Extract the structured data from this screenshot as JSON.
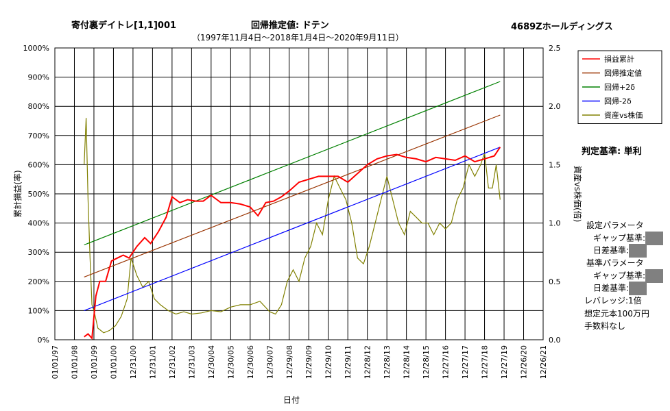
{
  "header": {
    "strategy": "寄付裏デイトレ[1,1]001",
    "regression_title": "回帰推定値: ドテン",
    "period": "（1997年11月4日～2018年1月4日～2020年9月11日）",
    "company": "4689Zホールディングス"
  },
  "side": {
    "judgment": "判定基準: 単利",
    "settings_title": "設定パラメータ",
    "gap_label": "ギャップ基準:",
    "daydiff_label": "日差基準:",
    "base_title": "基準パラメータ",
    "gap_label2": "ギャップ基準:",
    "daydiff_label2": "日差基準:",
    "leverage": "レバレッジ:1倍",
    "capital": "想定元本100万円",
    "fee": "手数料なし"
  },
  "chart_data": {
    "type": "line",
    "xlabel": "日付",
    "ylabel": "累計損益(率)",
    "y2label": "資産vs株価(倍)",
    "x_tick_labels": [
      "01/01/97",
      "01/01/98",
      "01/01/99",
      "01/01/00",
      "12/31/00",
      "12/31/01",
      "12/31/02",
      "12/31/03",
      "12/30/04",
      "12/30/05",
      "12/30/06",
      "12/30/07",
      "12/29/08",
      "12/29/09",
      "12/29/10",
      "12/29/11",
      "12/28/12",
      "12/28/13",
      "12/28/14",
      "12/28/15",
      "12/27/16",
      "12/27/17",
      "12/27/18",
      "12/27/19",
      "12/26/20",
      "12/26/21"
    ],
    "x_range": [
      1997.0,
      2022.0
    ],
    "y_tick_labels": [
      "0%",
      "100%",
      "200%",
      "300%",
      "400%",
      "500%",
      "600%",
      "700%",
      "800%",
      "900%",
      "1000%"
    ],
    "ylim": [
      0,
      10
    ],
    "y2_tick_labels": [
      "0.0",
      "0.5",
      "1.0",
      "1.5",
      "2.0",
      "2.5"
    ],
    "y2lim": [
      0,
      2.5
    ],
    "grid": true,
    "legend_position": "top-right",
    "series": [
      {
        "name": "損益累計",
        "color": "#ff0000",
        "axis": "left",
        "x": [
          1998.5,
          1998.7,
          1998.9,
          1999.1,
          1999.3,
          1999.6,
          1999.9,
          2000.2,
          2000.5,
          2000.8,
          2001.2,
          2001.6,
          2001.9,
          2002.3,
          2002.7,
          2003.0,
          2003.4,
          2003.8,
          2004.2,
          2004.6,
          2005.0,
          2005.5,
          2006.0,
          2006.5,
          2007.0,
          2007.4,
          2007.8,
          2008.2,
          2008.6,
          2009.0,
          2009.5,
          2010.0,
          2010.5,
          2011.0,
          2011.5,
          2012.0,
          2012.5,
          2013.0,
          2013.5,
          2014.0,
          2014.5,
          2015.0,
          2015.5,
          2016.0,
          2016.5,
          2017.0,
          2017.5,
          2018.0,
          2018.5,
          2019.0,
          2019.5,
          2019.8
        ],
        "y": [
          0.1,
          0.2,
          0.05,
          1.5,
          2.0,
          2.0,
          2.7,
          2.8,
          2.9,
          2.8,
          3.2,
          3.5,
          3.3,
          3.7,
          4.2,
          4.9,
          4.7,
          4.8,
          4.75,
          4.75,
          4.95,
          4.7,
          4.7,
          4.65,
          4.55,
          4.25,
          4.7,
          4.75,
          4.9,
          5.1,
          5.4,
          5.5,
          5.6,
          5.6,
          5.6,
          5.4,
          5.7,
          6.0,
          6.2,
          6.3,
          6.35,
          6.25,
          6.2,
          6.1,
          6.25,
          6.2,
          6.15,
          6.3,
          6.1,
          6.2,
          6.3,
          6.6
        ]
      },
      {
        "name": "回帰推定値",
        "color": "#993300",
        "axis": "left",
        "x": [
          1998.5,
          2019.8
        ],
        "y": [
          2.15,
          7.7
        ]
      },
      {
        "name": "回帰+2δ",
        "color": "#008000",
        "axis": "left",
        "x": [
          1998.5,
          2019.8
        ],
        "y": [
          3.25,
          8.85
        ]
      },
      {
        "name": "回帰-2δ",
        "color": "#0000ff",
        "axis": "left",
        "x": [
          1998.5,
          2019.8
        ],
        "y": [
          1.0,
          6.6
        ]
      },
      {
        "name": "資産vs株価",
        "color": "#808000",
        "axis": "right",
        "x": [
          1998.5,
          1998.6,
          1998.7,
          1998.8,
          1998.9,
          1999.0,
          1999.2,
          1999.5,
          1999.8,
          2000.1,
          2000.4,
          2000.7,
          2000.9,
          2001.2,
          2001.5,
          2001.8,
          2002.1,
          2002.4,
          2002.8,
          2003.2,
          2003.6,
          2004.0,
          2004.5,
          2005.0,
          2005.5,
          2006.0,
          2006.5,
          2007.0,
          2007.5,
          2008.0,
          2008.3,
          2008.6,
          2008.9,
          2009.2,
          2009.5,
          2009.8,
          2010.1,
          2010.4,
          2010.7,
          2011.0,
          2011.3,
          2011.6,
          2011.9,
          2012.2,
          2012.5,
          2012.8,
          2013.1,
          2013.4,
          2013.7,
          2014.0,
          2014.3,
          2014.6,
          2014.9,
          2015.2,
          2015.5,
          2015.8,
          2016.1,
          2016.4,
          2016.7,
          2017.0,
          2017.3,
          2017.6,
          2017.9,
          2018.2,
          2018.5,
          2018.8,
          2019.0,
          2019.2,
          2019.4,
          2019.6,
          2019.8
        ],
        "y": [
          1.5,
          1.9,
          1.2,
          0.7,
          0.3,
          0.25,
          0.1,
          0.06,
          0.08,
          0.12,
          0.2,
          0.35,
          0.7,
          0.55,
          0.45,
          0.5,
          0.35,
          0.3,
          0.25,
          0.22,
          0.24,
          0.22,
          0.23,
          0.25,
          0.24,
          0.28,
          0.3,
          0.3,
          0.33,
          0.24,
          0.22,
          0.3,
          0.5,
          0.6,
          0.5,
          0.7,
          0.8,
          1.0,
          0.9,
          1.2,
          1.4,
          1.3,
          1.2,
          1.0,
          0.7,
          0.65,
          0.8,
          1.0,
          1.2,
          1.4,
          1.2,
          1.0,
          0.9,
          1.1,
          1.05,
          1.0,
          1.0,
          0.9,
          1.0,
          0.95,
          1.0,
          1.2,
          1.3,
          1.5,
          1.4,
          1.5,
          1.6,
          1.3,
          1.3,
          1.5,
          1.2
        ]
      }
    ]
  }
}
